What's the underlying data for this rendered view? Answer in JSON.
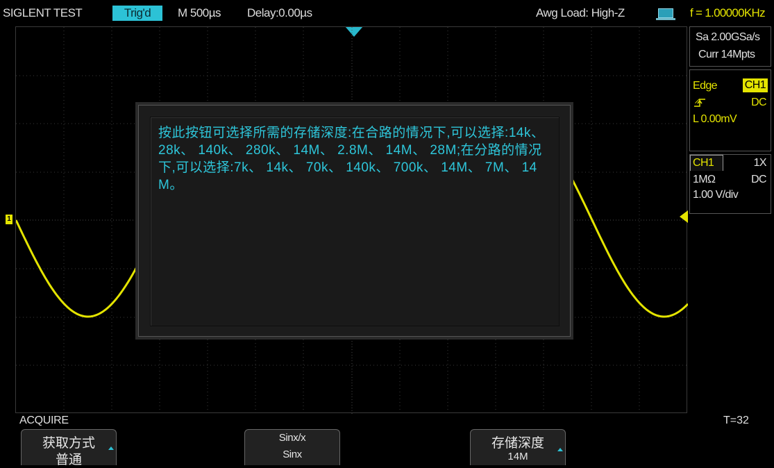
{
  "topbar": {
    "brand": "SIGLENT TEST",
    "trig_status": "Trig'd",
    "timebase": "M 500µs",
    "delay": "Delay:0.00µs",
    "awg_load": "Awg Load: High-Z",
    "frequency": "f = 1.00000KHz"
  },
  "acquisition": {
    "sample_rate": "Sa 2.00GSa/s",
    "memory": "Curr 14Mpts"
  },
  "trigger": {
    "type": "Edge",
    "source": "CH1",
    "coupling": "DC",
    "level": "L  0.00mV"
  },
  "channel": {
    "name": "CH1",
    "probe": "1X",
    "impedance": "1MΩ",
    "coupling": "DC",
    "scale": "1.00 V/div",
    "marker": "1"
  },
  "help_dialog": {
    "text": "按此按钮可选择所需的存储深度:在合路的情况下,可以选择:14k、 28k、 140k、 280k、 14M、 2.8M、 14M、 28M;在分路的情况下,可以选择:7k、 14k、 70k、 140k、 700k、 14M、 7M、 14M。"
  },
  "menu": {
    "title": "ACQUIRE",
    "counter": "T=32",
    "softkeys": [
      {
        "line1": "获取方式",
        "line2": "普通"
      },
      {
        "line1": "Sinx/x",
        "line2": "Sinx"
      },
      {
        "line1": "存储深度",
        "line2": "14M"
      }
    ]
  },
  "colors": {
    "channel1": "#e4e400",
    "accent": "#2cc2d6",
    "grid": "#3a3a3a"
  }
}
